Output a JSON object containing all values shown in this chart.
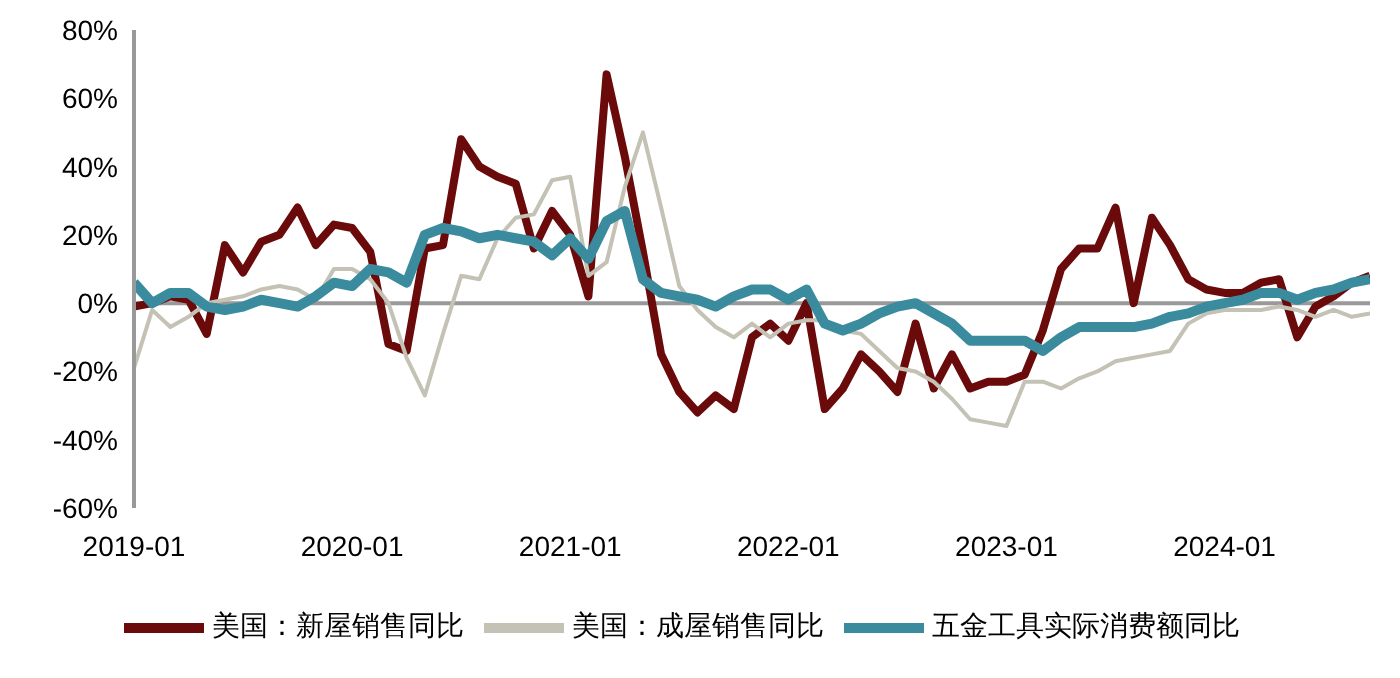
{
  "chart_data": {
    "type": "line",
    "x": [
      "2019-01",
      "2019-02",
      "2019-03",
      "2019-04",
      "2019-05",
      "2019-06",
      "2019-07",
      "2019-08",
      "2019-09",
      "2019-10",
      "2019-11",
      "2019-12",
      "2020-01",
      "2020-02",
      "2020-03",
      "2020-04",
      "2020-05",
      "2020-06",
      "2020-07",
      "2020-08",
      "2020-09",
      "2020-10",
      "2020-11",
      "2020-12",
      "2021-01",
      "2021-02",
      "2021-03",
      "2021-04",
      "2021-05",
      "2021-06",
      "2021-07",
      "2021-08",
      "2021-09",
      "2021-10",
      "2021-11",
      "2021-12",
      "2022-01",
      "2022-02",
      "2022-03",
      "2022-04",
      "2022-05",
      "2022-06",
      "2022-07",
      "2022-08",
      "2022-09",
      "2022-10",
      "2022-11",
      "2022-12",
      "2023-01",
      "2023-02",
      "2023-03",
      "2023-04",
      "2023-05",
      "2023-06",
      "2023-07",
      "2023-08",
      "2023-09",
      "2023-10",
      "2023-11",
      "2023-12",
      "2024-01",
      "2024-02",
      "2024-03",
      "2024-04",
      "2024-05",
      "2024-06",
      "2024-07",
      "2024-08",
      "2024-09"
    ],
    "series": [
      {
        "name": "美国：新屋销售同比",
        "color": "#6b0a0a",
        "values": [
          -1,
          0,
          2,
          1,
          -9,
          17,
          9,
          18,
          20,
          28,
          17,
          23,
          22,
          15,
          -12,
          -14,
          16,
          17,
          48,
          40,
          37,
          35,
          16,
          27,
          20,
          2,
          67,
          43,
          15,
          -15,
          -26,
          -32,
          -27,
          -31,
          -10,
          -6,
          -11,
          0,
          -31,
          -25,
          -15,
          -20,
          -26,
          -6,
          -25,
          -15,
          -25,
          -23,
          -23,
          -21,
          -8,
          10,
          16,
          16,
          28,
          0,
          25,
          17,
          7,
          4,
          3,
          3,
          6,
          7,
          -10,
          -1,
          2,
          6,
          8
        ]
      },
      {
        "name": "美国：成屋销售同比",
        "color": "#c4c2b4",
        "values": [
          -19,
          -2,
          -7,
          -4,
          0,
          1,
          2,
          4,
          5,
          4,
          1,
          10,
          10,
          7,
          0,
          -16,
          -27,
          -9,
          8,
          7,
          19,
          25,
          26,
          36,
          37,
          8,
          12,
          34,
          50,
          28,
          5,
          -2,
          -7,
          -10,
          -6,
          -10,
          -6,
          -5,
          -5,
          -8,
          -9,
          -14,
          -19,
          -20,
          -23,
          -28,
          -34,
          -35,
          -36,
          -23,
          -23,
          -25,
          -22,
          -20,
          -17,
          -16,
          -15,
          -14,
          -6,
          -3,
          -2,
          -2,
          -2,
          -1,
          -2,
          -4,
          -2,
          -4,
          -3
        ]
      },
      {
        "name": "五金工具实际消费额同比",
        "color": "#3b8b9e",
        "values": [
          6,
          0,
          3,
          3,
          -1,
          -2,
          -1,
          1,
          0,
          -1,
          2,
          6,
          5,
          10,
          9,
          6,
          20,
          22,
          21,
          19,
          20,
          19,
          18,
          14,
          19,
          13,
          24,
          27,
          7,
          3,
          2,
          1,
          -1,
          2,
          4,
          4,
          1,
          4,
          -6,
          -8,
          -6,
          -3,
          -1,
          0,
          -3,
          -6,
          -11,
          -11,
          -11,
          -11,
          -14,
          -10,
          -7,
          -7,
          -7,
          -7,
          -6,
          -4,
          -3,
          -1,
          0,
          1,
          3,
          3,
          1,
          3,
          4,
          6,
          7
        ]
      }
    ],
    "xlim": [
      "2019-01",
      "2024-09"
    ],
    "xticks": [
      "2019-01",
      "2020-01",
      "2021-01",
      "2022-01",
      "2023-01",
      "2024-01"
    ],
    "ylim": [
      -60,
      80
    ],
    "yticks": [
      {
        "value": -60,
        "label": "-60%"
      },
      {
        "value": -40,
        "label": "-40%"
      },
      {
        "value": -20,
        "label": "-20%"
      },
      {
        "value": 0,
        "label": "0%"
      },
      {
        "value": 20,
        "label": "20%"
      },
      {
        "value": 40,
        "label": "40%"
      },
      {
        "value": 60,
        "label": "60%"
      },
      {
        "value": 80,
        "label": "80%"
      }
    ],
    "ref_lines": [
      {
        "axis": "y",
        "value": 0,
        "color": "#999999"
      }
    ],
    "legend": "bottom",
    "marker": "none",
    "line_style": "solid"
  }
}
